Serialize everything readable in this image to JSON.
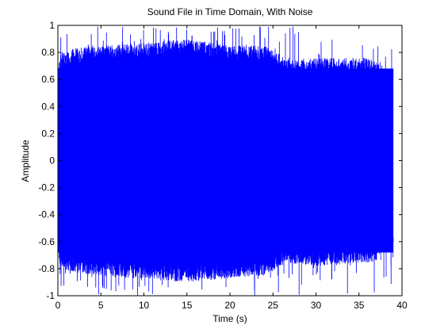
{
  "chart_data": {
    "type": "line",
    "title": "Sound File in Time Domain, With Noise",
    "xlabel": "Time (s)",
    "ylabel": "Amplitude",
    "xlim": [
      0,
      40
    ],
    "ylim": [
      -1,
      1
    ],
    "x_ticks": [
      0,
      5,
      10,
      15,
      20,
      25,
      30,
      35,
      40
    ],
    "y_ticks": [
      -1,
      -0.8,
      -0.6,
      -0.4,
      -0.2,
      0,
      0.2,
      0.4,
      0.6,
      0.8,
      1
    ],
    "x_tick_labels": [
      "0",
      "5",
      "10",
      "15",
      "20",
      "25",
      "30",
      "35",
      "40"
    ],
    "y_tick_labels": [
      "-1",
      "-0.8",
      "-0.6",
      "-0.4",
      "-0.2",
      "0",
      "0.2",
      "0.4",
      "0.6",
      "0.8",
      "1"
    ],
    "grid": false,
    "series": [
      {
        "color": "#0000ff",
        "duration_s": 39,
        "envelope": {
          "t": [
            0,
            0.3,
            2,
            5,
            10,
            15,
            20,
            24,
            25.5,
            27,
            30,
            35,
            37,
            37.5,
            39
          ],
          "upper": [
            0.68,
            0.8,
            0.83,
            0.85,
            0.87,
            0.9,
            0.85,
            0.85,
            0.8,
            0.74,
            0.76,
            0.76,
            0.75,
            0.68,
            0.68
          ],
          "lower": [
            -0.68,
            -0.8,
            -0.83,
            -0.85,
            -0.88,
            -0.9,
            -0.87,
            -0.85,
            -0.8,
            -0.76,
            -0.78,
            -0.76,
            -0.75,
            -0.68,
            -0.68
          ],
          "spike_max": 1.0,
          "spike_min": -1.0
        }
      }
    ]
  }
}
